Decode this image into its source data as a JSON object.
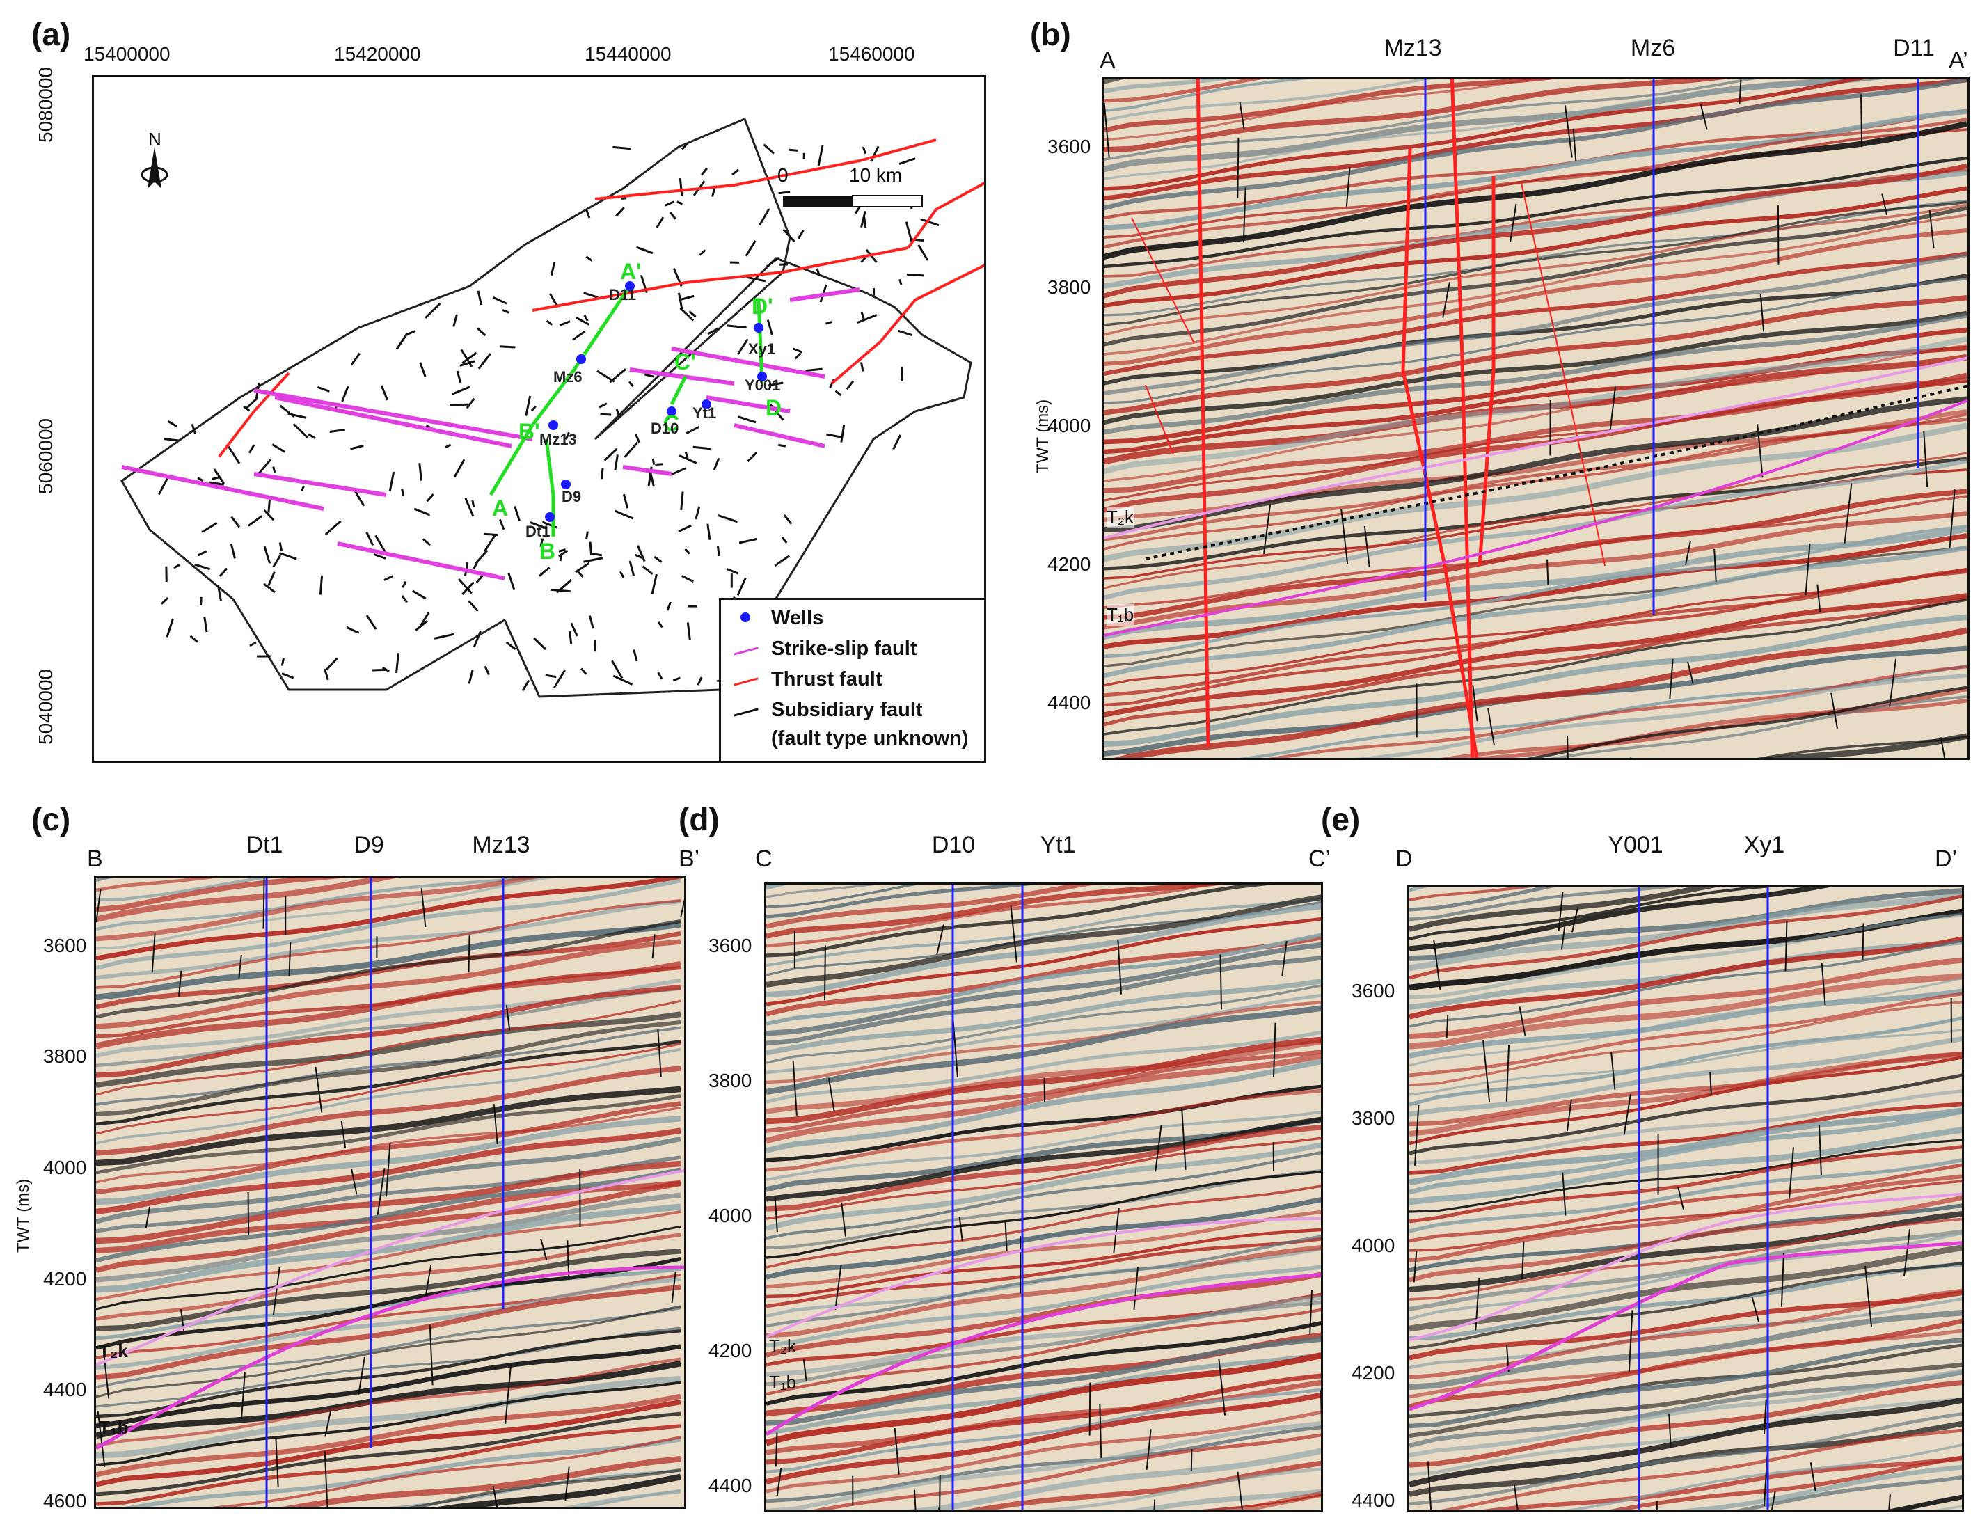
{
  "panels": {
    "a": {
      "letter": "(a)",
      "x_ticks": [
        "15400000",
        "15420000",
        "15440000",
        "15460000"
      ],
      "y_ticks": [
        "5080000",
        "5060000",
        "5040000"
      ],
      "north": "N",
      "scale": {
        "zero": "0",
        "end": "10 km"
      },
      "well_labels": [
        "D11",
        "Mz6",
        "Mz13",
        "D9",
        "Dt1",
        "Xy1",
        "Y001",
        "Yt1",
        "D10"
      ],
      "line_labels": {
        "a": "A",
        "a_prime": "A'",
        "b": "B",
        "b_prime": "B'",
        "c": "C",
        "c_prime": "C'",
        "d": "D",
        "d_prime": "D'"
      },
      "legend": [
        {
          "label": "Wells",
          "color": "#1a1aff",
          "symbol": "dot"
        },
        {
          "label": "Strike-slip fault",
          "color": "#e040e0",
          "symbol": "line"
        },
        {
          "label": "Thrust fault",
          "color": "#ff2020",
          "symbol": "line"
        },
        {
          "label": "Subsidiary fault",
          "label2": "(fault type unknown)",
          "color": "#111111",
          "symbol": "line"
        }
      ]
    },
    "b": {
      "letter": "(b)",
      "left_end": "A",
      "right_end": "A’",
      "wells": [
        "Mz13",
        "Mz6",
        "D11"
      ],
      "y_label": "TWT (ms)",
      "y_ticks": [
        "3600",
        "3800",
        "4000",
        "4200",
        "4400"
      ],
      "horizons": {
        "upper": "T₂k",
        "lower": "T₁b"
      }
    },
    "c": {
      "letter": "(c)",
      "left_end": "B",
      "right_end": "B’",
      "wells": [
        "Dt1",
        "D9",
        "Mz13"
      ],
      "y_label": "TWT (ms)",
      "y_ticks": [
        "3600",
        "3800",
        "4000",
        "4200",
        "4400",
        "4600"
      ],
      "horizons": {
        "upper": "T₂k",
        "lower": "T₁b"
      }
    },
    "d": {
      "letter": "(d)",
      "left_end": "C",
      "right_end": "C’",
      "wells": [
        "D10",
        "Yt1"
      ],
      "y_ticks": [
        "3600",
        "3800",
        "4000",
        "4200",
        "4400"
      ],
      "horizons": {
        "upper": "T₂k",
        "lower": "T₁b"
      }
    },
    "e": {
      "letter": "(e)",
      "left_end": "D",
      "right_end": "D’",
      "wells": [
        "Y001",
        "Xy1"
      ],
      "y_ticks": [
        "3600",
        "3800",
        "4000",
        "4200",
        "4400"
      ]
    }
  },
  "colors": {
    "seismic_red": "#b32a22",
    "seismic_dark": "#111111",
    "seismic_light": "#e9dcc6",
    "well": "#2020ff",
    "t2k": "#e79be6",
    "t1b": "#e040d8",
    "thrust": "#ff2020"
  }
}
